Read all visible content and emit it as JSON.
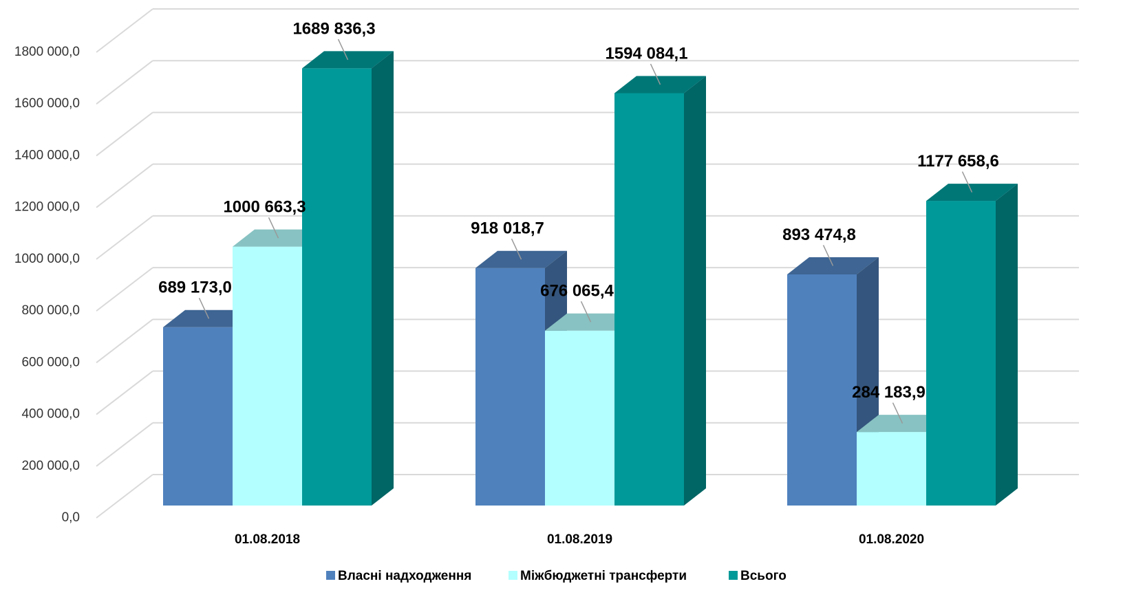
{
  "chart_data": {
    "type": "bar3d",
    "categories": [
      "01.08.2018",
      "01.08.2019",
      "01.08.2020"
    ],
    "series": [
      {
        "name": "Власні надходження",
        "color": "#4f81bd",
        "values": [
          689173.0,
          918018.7,
          893474.8
        ],
        "value_labels": [
          "689 173,0",
          "918 018,7",
          "893 474,8"
        ]
      },
      {
        "name": "Міжбюджетні трансферти",
        "color": "#b3ffff",
        "values": [
          1000663.3,
          676065.4,
          284183.9
        ],
        "value_labels": [
          "1000 663,3",
          "676 065,4",
          "284 183,9"
        ]
      },
      {
        "name": "Всього",
        "color": "#009999",
        "values": [
          1689836.3,
          1594084.1,
          1177658.6
        ],
        "value_labels": [
          "1689 836,3",
          "1594 084,1",
          "1177 658,6"
        ]
      }
    ],
    "ylim": [
      0,
      1800000
    ],
    "yticks": [
      {
        "value": 0,
        "label": "0,0"
      },
      {
        "value": 200000,
        "label": "200 000,0"
      },
      {
        "value": 400000,
        "label": "400 000,0"
      },
      {
        "value": 600000,
        "label": "600 000,0"
      },
      {
        "value": 800000,
        "label": "800 000,0"
      },
      {
        "value": 1000000,
        "label": "1000 000,0"
      },
      {
        "value": 1200000,
        "label": "1200 000,0"
      },
      {
        "value": 1400000,
        "label": "1400 000,0"
      },
      {
        "value": 1600000,
        "label": "1600 000,0"
      },
      {
        "value": 1800000,
        "label": "1800 000,0"
      }
    ],
    "grid": true,
    "legend": "bottom"
  }
}
